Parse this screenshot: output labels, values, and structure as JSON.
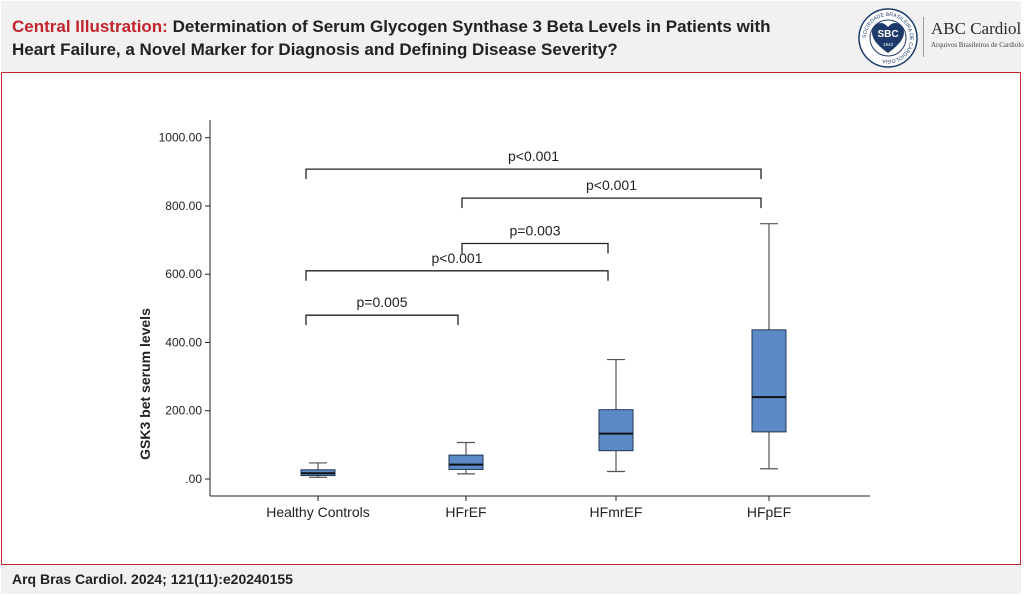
{
  "header": {
    "title_lead": "Central Illustration:",
    "title_text": " Determination of Serum Glycogen Synthase 3 Beta Levels in Patients with Heart Failure, a Novel Marker for Diagnosis and Defining Disease Severity?",
    "logo": {
      "seal_text": "SBC",
      "seal_ring_text": "SOCIEDADE BRASILEIRA DE CARDIOLOGIA",
      "seal_year": "1943",
      "journal_name": "ABC Cardiol",
      "journal_subtitle": "Arquivos Brasileiros de Cardiologia"
    }
  },
  "footer": {
    "citation": "Arq Bras Cardiol. 2024; 121(11):e20240155"
  },
  "colors": {
    "accent": "#c2242d",
    "box_fill": "#5b8ac7",
    "box_stroke": "#1f3550",
    "header_bg": "#f1f1f1"
  },
  "chart_data": {
    "type": "box",
    "title": "",
    "xlabel": "",
    "ylabel": "GSK3 bet serum levels",
    "ylim": [
      0,
      1000
    ],
    "yticks": [
      0,
      200,
      400,
      600,
      800,
      1000
    ],
    "ytick_labels": [
      ".00",
      "200.00",
      "400.00",
      "600.00",
      "800.00",
      "1000.00"
    ],
    "categories": [
      "Healthy Controls",
      "HFrEF",
      "HFmrEF",
      "HFpEF"
    ],
    "boxes": [
      {
        "category": "Healthy Controls",
        "min": 5,
        "q1": 10,
        "median": 17,
        "q3": 27,
        "max": 47
      },
      {
        "category": "HFrEF",
        "min": 15,
        "q1": 28,
        "median": 42,
        "q3": 70,
        "max": 107
      },
      {
        "category": "HFmrEF",
        "min": 22,
        "q1": 83,
        "median": 133,
        "q3": 203,
        "max": 350
      },
      {
        "category": "HFpEF",
        "min": 30,
        "q1": 138,
        "median": 240,
        "q3": 437,
        "max": 748
      }
    ],
    "significance": [
      {
        "from": "Healthy Controls",
        "to": "HFpEF",
        "label": "p<0.001",
        "y": 908
      },
      {
        "from": "HFrEF",
        "to": "HFpEF",
        "label": "p<0.001",
        "y": 823
      },
      {
        "from": "HFrEF",
        "to": "HFmrEF",
        "label": "p=0.003",
        "y": 690
      },
      {
        "from": "Healthy Controls",
        "to": "HFmrEF",
        "label": "p<0.001",
        "y": 610
      },
      {
        "from": "Healthy Controls",
        "to": "HFrEF",
        "label": "p=0.005",
        "y": 480
      }
    ]
  }
}
